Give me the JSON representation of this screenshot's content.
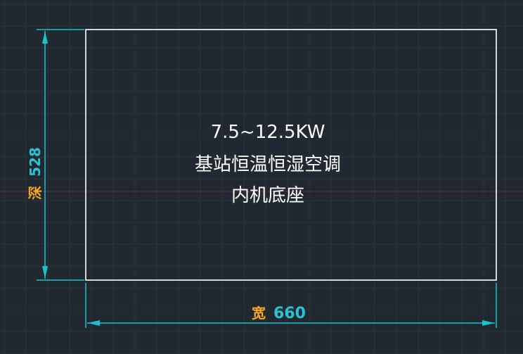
{
  "drawing": {
    "title_lines": [
      "7.5~12.5KW",
      "基站恒温恒湿空调",
      "内机底座"
    ],
    "width_dimension": {
      "label": "宽",
      "value": "660"
    },
    "depth_dimension": {
      "label": "深",
      "value": "528"
    }
  },
  "colors": {
    "background": "#212830",
    "grid_line": "#2b333c",
    "rectangle": "#d6d6d6",
    "dimension_line": "#19c2d0",
    "dimension_label": "#f5a623",
    "dimension_value": "#2bc3d3",
    "center_line": "#6a2a2a"
  }
}
